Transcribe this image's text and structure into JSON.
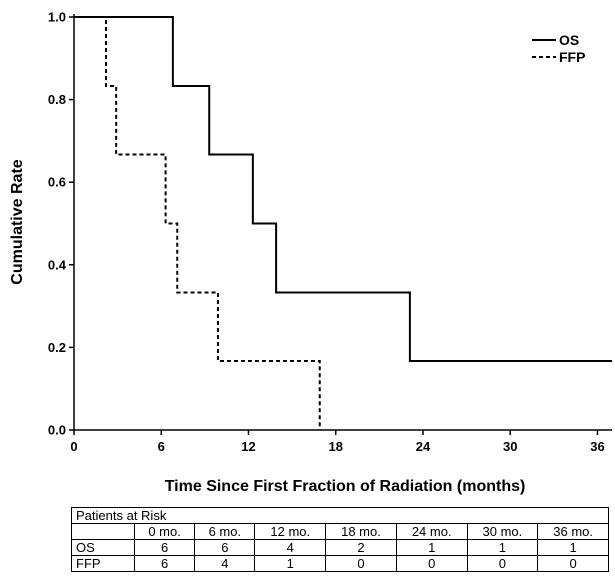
{
  "chart_data": {
    "type": "line",
    "step": true,
    "xlabel": "Time Since First Fraction of Radiation (months)",
    "ylabel": "Cumulative Rate",
    "xlim": [
      0,
      37
    ],
    "ylim": [
      0,
      1
    ],
    "xticks": [
      0,
      6,
      12,
      18,
      24,
      30,
      36
    ],
    "yticks": [
      0.0,
      0.2,
      0.4,
      0.6,
      0.8,
      1.0
    ],
    "ytick_labels": [
      "0.0",
      "0.2",
      "0.4",
      "0.6",
      "0.8",
      "1.0"
    ],
    "grid": false,
    "legend": "top-right",
    "series": [
      {
        "name": "OS",
        "style": "solid",
        "x": [
          0,
          6.8,
          9.3,
          12.3,
          13.9,
          23.1,
          37
        ],
        "y": [
          1.0,
          0.833,
          0.667,
          0.5,
          0.333,
          0.167,
          0.167
        ]
      },
      {
        "name": "FFP",
        "style": "dashed",
        "x": [
          0,
          2.2,
          2.9,
          6.3,
          7.1,
          9.9,
          16.9
        ],
        "y": [
          1.0,
          0.833,
          0.667,
          0.5,
          0.333,
          0.167,
          0.0
        ]
      }
    ]
  },
  "risk_table": {
    "title": "Patients at Risk",
    "columns": [
      "0 mo.",
      "6 mo.",
      "12 mo.",
      "18 mo.",
      "24 mo.",
      "30 mo.",
      "36 mo."
    ],
    "rows": [
      {
        "label": "OS",
        "values": [
          "6",
          "6",
          "4",
          "2",
          "1",
          "1",
          "1"
        ]
      },
      {
        "label": "FFP",
        "values": [
          "6",
          "4",
          "1",
          "0",
          "0",
          "0",
          "0"
        ]
      }
    ]
  }
}
